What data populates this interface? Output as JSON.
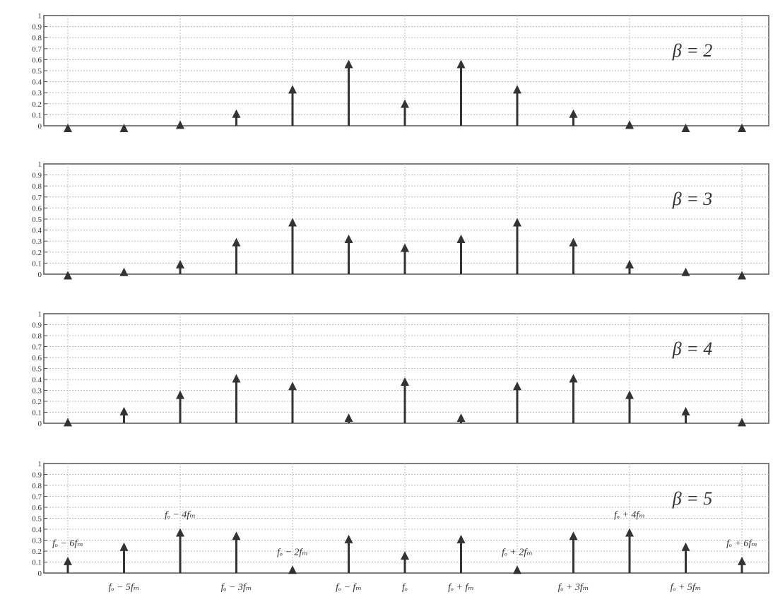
{
  "chart_data": [
    {
      "type": "bar",
      "annotation": "β = 2",
      "ylim": [
        0,
        1
      ],
      "yticks": [
        "0",
        "0.1",
        "0.2",
        "0.3",
        "0.4",
        "0.5",
        "0.6",
        "0.7",
        "0.8",
        "0.9",
        "1"
      ],
      "grid": true,
      "values": [
        0.0,
        0.0,
        0.03,
        0.13,
        0.35,
        0.58,
        0.22,
        0.58,
        0.35,
        0.13,
        0.03,
        0.0,
        0.0
      ]
    },
    {
      "type": "bar",
      "annotation": "β = 3",
      "ylim": [
        0,
        1
      ],
      "yticks": [
        "0",
        "0.1",
        "0.2",
        "0.3",
        "0.4",
        "0.5",
        "0.6",
        "0.7",
        "0.8",
        "0.9",
        "1"
      ],
      "grid": true,
      "values": [
        0.01,
        0.04,
        0.11,
        0.31,
        0.49,
        0.34,
        0.26,
        0.34,
        0.49,
        0.31,
        0.11,
        0.04,
        0.01
      ]
    },
    {
      "type": "bar",
      "annotation": "β = 4",
      "ylim": [
        0,
        1
      ],
      "yticks": [
        "0",
        "0.1",
        "0.2",
        "0.3",
        "0.4",
        "0.5",
        "0.6",
        "0.7",
        "0.8",
        "0.9",
        "1"
      ],
      "grid": true,
      "values": [
        0.03,
        0.13,
        0.28,
        0.43,
        0.36,
        0.07,
        0.4,
        0.07,
        0.36,
        0.43,
        0.28,
        0.13,
        0.03
      ]
    },
    {
      "type": "bar",
      "annotation": "β = 5",
      "ylim": [
        0,
        1
      ],
      "yticks": [
        "0",
        "0.1",
        "0.2",
        "0.3",
        "0.4",
        "0.5",
        "0.6",
        "0.7",
        "0.8",
        "0.9",
        "1"
      ],
      "grid": true,
      "values": [
        0.13,
        0.26,
        0.39,
        0.36,
        0.05,
        0.33,
        0.18,
        0.33,
        0.05,
        0.36,
        0.39,
        0.26,
        0.13
      ],
      "annotations_top": [
        {
          "index": 0,
          "text": "fₒ − 6fₘ"
        },
        {
          "index": 2,
          "text": "fₒ − 4fₘ"
        },
        {
          "index": 4,
          "text": "fₒ − 2fₘ"
        },
        {
          "index": 8,
          "text": "fₒ + 2fₘ"
        },
        {
          "index": 10,
          "text": "fₒ + 4fₘ"
        },
        {
          "index": 12,
          "text": "fₒ + 6fₘ"
        }
      ],
      "xlabels_bottom": [
        {
          "index": 1,
          "text": "fₒ − 5fₘ"
        },
        {
          "index": 3,
          "text": "fₒ − 3fₘ"
        },
        {
          "index": 5,
          "text": "fₒ − fₘ"
        },
        {
          "index": 6,
          "text": "fₒ"
        },
        {
          "index": 7,
          "text": "fₒ + fₘ"
        },
        {
          "index": 9,
          "text": "fₒ + 3fₘ"
        },
        {
          "index": 11,
          "text": "fₒ + 5fₘ"
        }
      ]
    }
  ],
  "colors": {
    "stem": "#333333",
    "grid": "#bdbdbd",
    "frame": "#555555",
    "text": "#333333"
  }
}
